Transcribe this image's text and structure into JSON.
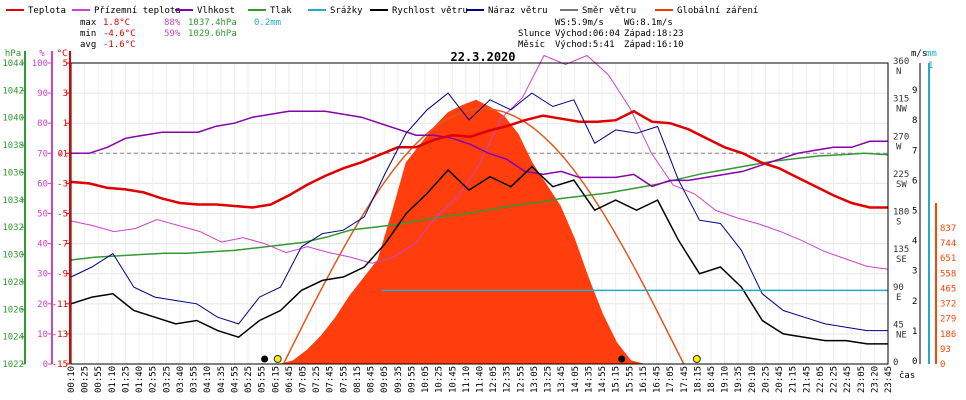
{
  "chart_data": {
    "type": "line",
    "title": "22.3.2020",
    "legend": [
      {
        "label": "Teplota",
        "color": "#e00000"
      },
      {
        "label": "Přízemní teplota",
        "color": "#cc44cc"
      },
      {
        "label": "Vlhkost",
        "color": "#8800aa"
      },
      {
        "label": "Tlak",
        "color": "#339933"
      },
      {
        "label": "Srážky",
        "color": "#22aacc"
      },
      {
        "label": "Rychlost větru",
        "color": "#000000"
      },
      {
        "label": "Náraz větru",
        "color": "#000088"
      },
      {
        "label": "Směr větru",
        "color": "#777777"
      },
      {
        "label": "Globální záření",
        "color": "#ff3300"
      }
    ],
    "stats": [
      {
        "label": "max",
        "temp": "1.8°C",
        "hum": "88%",
        "press": "1037.4hPa",
        "rain": "0.2mm"
      },
      {
        "label": "min",
        "temp": "-4.6°C",
        "hum": "59%",
        "press": "1029.6hPa",
        "rain": ""
      },
      {
        "label": "avg",
        "temp": "-1.6°C",
        "hum": "",
        "press": "",
        "rain": ""
      }
    ],
    "info": {
      "ws": "WS:5.9m/s",
      "wg": "WG:8.1m/s",
      "sun_label": "Slunce",
      "sun_rise": "Východ:06:04",
      "sun_set": "Západ:18:23",
      "moon_label": "Měsíc",
      "moon_rise": "Východ:5:41",
      "moon_set": "Západ:16:10"
    },
    "axes": {
      "hpa_label": "hPa",
      "hpa_ticks": [
        "1044",
        "1042",
        "1040",
        "1038",
        "1036",
        "1034",
        "1032",
        "1030",
        "1028",
        "1026",
        "1024",
        "1022"
      ],
      "pct_label": "%",
      "pct_ticks": [
        "100",
        "90",
        "80",
        "70",
        "60",
        "50",
        "40",
        "30",
        "20",
        "10",
        "0"
      ],
      "c_label": "°C",
      "c_ticks": [
        "5",
        "3",
        "1",
        "-1",
        "-3",
        "-5",
        "-7",
        "-9",
        "-11",
        "-13",
        "-15"
      ],
      "c_special": {
        "-1": "0"
      },
      "dir_ticks": [
        "360",
        "315",
        "270",
        "225",
        "180",
        "135",
        "90",
        "45",
        "0"
      ],
      "dir_letters": [
        "N",
        "NW",
        "W",
        "SW",
        "S",
        "SE",
        "E",
        "NE",
        ""
      ],
      "ms_label": "m/s",
      "ms_ticks": [
        "9",
        "8",
        "7",
        "6",
        "5",
        "4",
        "3",
        "2",
        "1",
        "0"
      ],
      "mm_label": "mm",
      "mm_top": "1",
      "wm_ticks": [
        "837",
        "744",
        "651",
        "558",
        "465",
        "372",
        "279",
        "186",
        "93",
        "0"
      ],
      "x_label": "čas",
      "x_ticks": [
        "00:10",
        "00:25",
        "00:55",
        "01:10",
        "01:25",
        "01:40",
        "02:55",
        "03:25",
        "03:40",
        "03:55",
        "04:10",
        "04:35",
        "04:55",
        "05:25",
        "05:55",
        "06:15",
        "06:45",
        "07:05",
        "07:25",
        "07:45",
        "07:55",
        "08:15",
        "08:45",
        "09:05",
        "09:35",
        "09:55",
        "10:05",
        "10:25",
        "10:45",
        "11:10",
        "11:40",
        "12:05",
        "12:35",
        "12:55",
        "13:05",
        "13:25",
        "13:45",
        "14:05",
        "14:35",
        "14:55",
        "15:15",
        "15:55",
        "16:15",
        "16:45",
        "17:05",
        "17:45",
        "18:15",
        "18:45",
        "19:10",
        "19:35",
        "20:10",
        "20:25",
        "20:45",
        "21:15",
        "21:45",
        "22:05",
        "22:25",
        "22:45",
        "23:05",
        "23:20",
        "23:45"
      ]
    },
    "series": [
      {
        "name": "Teplota",
        "unit": "°C",
        "values": [
          -2.9,
          -3.0,
          -3.3,
          -3.4,
          -3.6,
          -4.0,
          -4.3,
          -4.4,
          -4.4,
          -4.5,
          -4.6,
          -4.4,
          -3.8,
          -3.1,
          -2.5,
          -2.0,
          -1.6,
          -1.1,
          -0.6,
          -0.6,
          -0.1,
          0.2,
          0.1,
          0.5,
          0.8,
          1.2,
          1.5,
          1.3,
          1.1,
          1.1,
          1.2,
          1.8,
          1.1,
          1.0,
          0.6,
          0.0,
          -0.6,
          -1.0,
          -1.6,
          -2.0,
          -2.6,
          -3.2,
          -3.8,
          -4.3,
          -4.6,
          -4.6
        ]
      },
      {
        "name": "Vlhkost",
        "unit": "%",
        "values": [
          70,
          70,
          72,
          75,
          76,
          77,
          77,
          77,
          79,
          80,
          82,
          83,
          84,
          84,
          84,
          83,
          82,
          80,
          78,
          76,
          76,
          75,
          73,
          70,
          68,
          64,
          63,
          64,
          62,
          62,
          62,
          63,
          59,
          61,
          61,
          62,
          63,
          64,
          66,
          68,
          70,
          71,
          72,
          72,
          74,
          74
        ]
      },
      {
        "name": "Tlak",
        "unit": "hPa",
        "values": [
          1029.6,
          1029.8,
          1029.9,
          1030.0,
          1030.1,
          1030.1,
          1030.2,
          1030.3,
          1030.5,
          1030.7,
          1030.9,
          1031.3,
          1031.8,
          1032.0,
          1032.2,
          1032.5,
          1032.8,
          1033.0,
          1033.3,
          1033.6,
          1033.8,
          1034.1,
          1034.3,
          1034.5,
          1034.8,
          1035.1,
          1035.5,
          1035.9,
          1036.2,
          1036.5,
          1036.8,
          1037.0,
          1037.2,
          1037.3,
          1037.4,
          1037.3
        ]
      },
      {
        "name": "Přízemní teplota",
        "unit": "°C",
        "values": [
          -5.5,
          -5.8,
          -6.2,
          -6.0,
          -5.4,
          -5.8,
          -6.2,
          -6.9,
          -6.6,
          -7.0,
          -7.6,
          -7.2,
          -7.6,
          -7.9,
          -8.3,
          -7.9,
          -7.0,
          -5.2,
          -3.9,
          -1.7,
          1.3,
          2.7,
          5.5,
          4.9,
          5.5,
          4.2,
          2.0,
          -1.0,
          -3.1,
          -3.7,
          -4.8,
          -5.3,
          -5.7,
          -6.2,
          -6.8,
          -7.5,
          -8.0,
          -8.5,
          -8.7
        ]
      },
      {
        "name": "Rychlost větru",
        "unit": "m/s",
        "values": [
          1.8,
          2.0,
          2.1,
          1.6,
          1.4,
          1.2,
          1.3,
          1.0,
          0.8,
          1.3,
          1.6,
          2.2,
          2.5,
          2.6,
          2.9,
          3.6,
          4.5,
          5.1,
          5.8,
          5.2,
          5.6,
          5.3,
          5.9,
          5.3,
          5.5,
          4.6,
          4.9,
          4.6,
          4.9,
          3.7,
          2.7,
          2.9,
          2.3,
          1.3,
          0.9,
          0.8,
          0.7,
          0.7,
          0.6,
          0.6
        ]
      },
      {
        "name": "Náraz větru",
        "unit": "m/s",
        "values": [
          2.6,
          2.9,
          3.3,
          2.3,
          2.0,
          1.9,
          1.8,
          1.4,
          1.2,
          2.0,
          2.3,
          3.5,
          3.9,
          4.0,
          4.4,
          5.7,
          6.9,
          7.6,
          8.1,
          7.3,
          7.9,
          7.6,
          8.1,
          7.7,
          7.9,
          6.6,
          7.0,
          6.9,
          7.1,
          5.5,
          4.3,
          4.2,
          3.4,
          2.1,
          1.6,
          1.4,
          1.2,
          1.1,
          1.0,
          1.0
        ]
      },
      {
        "name": "Globální záření",
        "unit": "W/m²",
        "values": [
          0,
          0,
          0,
          10,
          40,
          80,
          130,
          190,
          240,
          290,
          420,
          560,
          610,
          660,
          700,
          720,
          735,
          715,
          690,
          640,
          560,
          500,
          440,
          350,
          240,
          140,
          60,
          10,
          0,
          0
        ]
      },
      {
        "name": "Srážky",
        "unit": "mm",
        "values": [
          0.2
        ]
      }
    ]
  }
}
